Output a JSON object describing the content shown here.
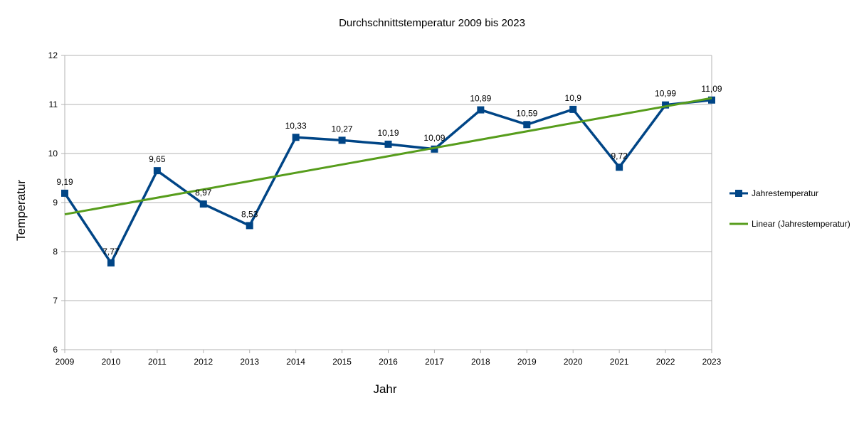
{
  "chart_data": {
    "type": "line",
    "title": "Durchschnittstemperatur 2009 bis 2023",
    "xlabel": "Jahr",
    "ylabel": "Temperatur",
    "categories": [
      "2009",
      "2010",
      "2011",
      "2012",
      "2013",
      "2014",
      "2015",
      "2016",
      "2017",
      "2018",
      "2019",
      "2020",
      "2021",
      "2022",
      "2023"
    ],
    "ylim": [
      6,
      12
    ],
    "yticks": [
      6,
      7,
      8,
      9,
      10,
      11,
      12
    ],
    "grid": true,
    "legend_position": "right",
    "series": [
      {
        "name": "Jahrestemperatur",
        "color": "#004586",
        "marker": "square",
        "values": [
          9.19,
          7.77,
          9.65,
          8.97,
          8.53,
          10.33,
          10.27,
          10.19,
          10.09,
          10.89,
          10.59,
          10.9,
          9.72,
          10.99,
          11.09
        ],
        "data_labels": [
          "9,19",
          "7,77",
          "9,65",
          "8,97",
          "8,53",
          "10,33",
          "10,27",
          "10,19",
          "10,09",
          "10,89",
          "10,59",
          "10,9",
          "9,72",
          "10,99",
          "11,09"
        ]
      }
    ],
    "trendline": {
      "name": "Linear (Jahrestemperatur)",
      "type": "linear",
      "color": "#579d1c",
      "start_value": 8.76,
      "end_value": 11.13
    }
  }
}
